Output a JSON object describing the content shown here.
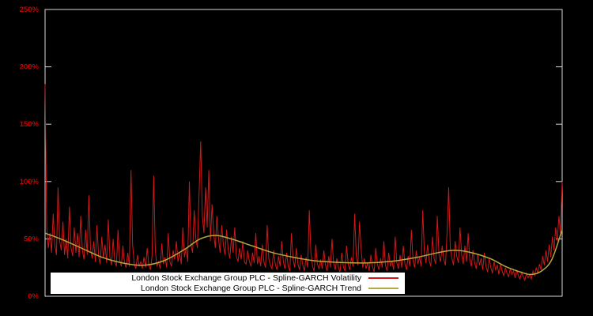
{
  "background": "#000000",
  "frame_color": "#d8d8d8",
  "axis_label_color": "#cc0000",
  "legend": {
    "items": [
      {
        "label": "London Stock Exchange Group PLC - Spline-GARCH Volatility",
        "color": "#d01818",
        "series": "volatility"
      },
      {
        "label": "London Stock Exchange Group PLC - Spline-GARCH Trend",
        "color": "#b5a83c",
        "series": "trend"
      }
    ]
  },
  "chart_data": {
    "type": "line",
    "title": "",
    "xlabel": "",
    "ylabel": "",
    "ylim": [
      0,
      250
    ],
    "yticks": [
      0,
      50,
      100,
      150,
      200,
      250
    ],
    "ytick_labels": [
      "0%",
      "50%",
      "100%",
      "150%",
      "200%",
      "250%"
    ],
    "x_range": [
      0,
      1
    ],
    "xtick_labels": [],
    "grid": false,
    "legend_position": "bottom-left",
    "series": [
      {
        "name": "London Stock Exchange Group PLC - Spline-GARCH Volatility",
        "color": "#d01818",
        "style": "spiky",
        "unit": "percent",
        "y": [
          185,
          60,
          42,
          55,
          38,
          72,
          45,
          36,
          95,
          48,
          40,
          65,
          36,
          50,
          33,
          78,
          42,
          35,
          60,
          38,
          55,
          34,
          70,
          40,
          32,
          58,
          36,
          88,
          42,
          33,
          48,
          30,
          62,
          35,
          28,
          52,
          33,
          45,
          29,
          67,
          34,
          27,
          50,
          30,
          26,
          58,
          32,
          26,
          44,
          29,
          25,
          38,
          26,
          110,
          45,
          28,
          24,
          36,
          26,
          30,
          24,
          34,
          25,
          42,
          27,
          23,
          35,
          105,
          40,
          26,
          30,
          24,
          46,
          28,
          34,
          25,
          55,
          30,
          26,
          40,
          32,
          48,
          30,
          38,
          28,
          60,
          34,
          42,
          30,
          100,
          45,
          38,
          75,
          50,
          42,
          90,
          135,
          70,
          55,
          95,
          60,
          110,
          48,
          80,
          55,
          42,
          70,
          50,
          38,
          62,
          45,
          36,
          58,
          40,
          33,
          52,
          38,
          60,
          35,
          30,
          42,
          32,
          48,
          30,
          28,
          40,
          31,
          26,
          38,
          29,
          55,
          28,
          35,
          26,
          45,
          30,
          25,
          62,
          33,
          27,
          24,
          40,
          28,
          23,
          35,
          26,
          48,
          30,
          24,
          38,
          26,
          22,
          55,
          32,
          25,
          42,
          28,
          23,
          36,
          27,
          22,
          34,
          25,
          75,
          38,
          26,
          22,
          45,
          28,
          24,
          32,
          24,
          40,
          27,
          22,
          35,
          25,
          50,
          29,
          23,
          33,
          25,
          21,
          38,
          26,
          22,
          44,
          28,
          23,
          34,
          26,
          72,
          35,
          27,
          65,
          40,
          25,
          33,
          24,
          29,
          22,
          36,
          26,
          21,
          42,
          28,
          23,
          33,
          25,
          48,
          27,
          22,
          38,
          26,
          31,
          23,
          52,
          29,
          24,
          36,
          25,
          44,
          28,
          23,
          35,
          26,
          58,
          31,
          25,
          40,
          28,
          34,
          26,
          75,
          38,
          29,
          45,
          31,
          26,
          52,
          33,
          28,
          70,
          36,
          30,
          44,
          32,
          27,
          55,
          95,
          42,
          33,
          27,
          48,
          35,
          29,
          60,
          36,
          28,
          44,
          30,
          55,
          32,
          26,
          40,
          29,
          24,
          37,
          27,
          33,
          23,
          38,
          26,
          21,
          33,
          25,
          20,
          30,
          23,
          27,
          19,
          28,
          22,
          18,
          25,
          20,
          17,
          24,
          19,
          22,
          16,
          23,
          18,
          15,
          21,
          17,
          14,
          20,
          16,
          19,
          15,
          22,
          18,
          25,
          20,
          28,
          23,
          35,
          27,
          40,
          30,
          45,
          34,
          52,
          40,
          60,
          48,
          70,
          55,
          100
        ]
      },
      {
        "name": "London Stock Exchange Group PLC - Spline-GARCH Trend",
        "color": "#b5a83c",
        "style": "smooth",
        "unit": "percent",
        "points": [
          [
            0.0,
            55
          ],
          [
            0.03,
            50
          ],
          [
            0.07,
            42
          ],
          [
            0.11,
            34
          ],
          [
            0.15,
            29
          ],
          [
            0.19,
            27
          ],
          [
            0.23,
            31
          ],
          [
            0.27,
            41
          ],
          [
            0.3,
            50
          ],
          [
            0.33,
            53
          ],
          [
            0.36,
            50
          ],
          [
            0.4,
            44
          ],
          [
            0.44,
            38
          ],
          [
            0.48,
            34
          ],
          [
            0.52,
            31
          ],
          [
            0.57,
            29.5
          ],
          [
            0.62,
            29
          ],
          [
            0.67,
            30.5
          ],
          [
            0.72,
            34
          ],
          [
            0.76,
            38
          ],
          [
            0.79,
            40
          ],
          [
            0.82,
            38.5
          ],
          [
            0.86,
            33
          ],
          [
            0.89,
            26
          ],
          [
            0.92,
            21
          ],
          [
            0.94,
            19
          ],
          [
            0.96,
            22
          ],
          [
            0.98,
            32
          ],
          [
            1.0,
            58
          ]
        ]
      }
    ]
  }
}
